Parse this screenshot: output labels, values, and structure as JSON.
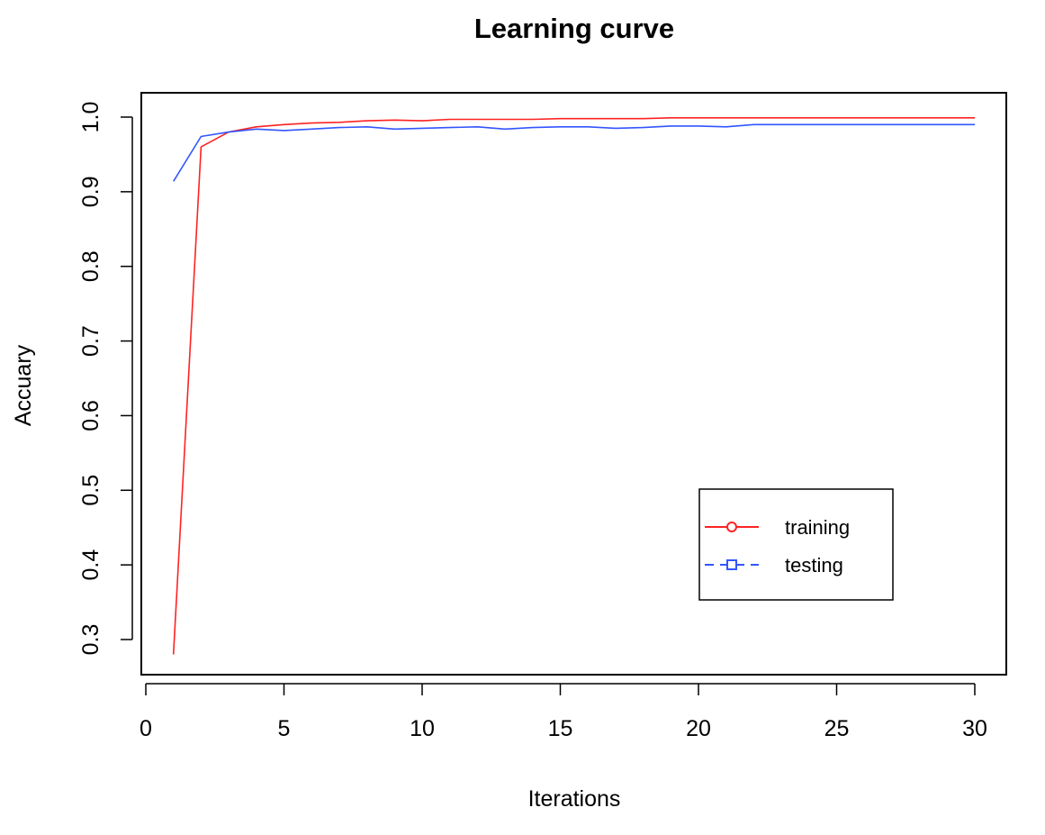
{
  "chart_data": {
    "type": "line",
    "title": "Learning curve",
    "xlabel": "Iterations",
    "ylabel": "Accuary",
    "xlim": [
      0,
      30
    ],
    "ylim": [
      0.25,
      1.02
    ],
    "xticks": [
      0,
      5,
      10,
      15,
      20,
      25,
      30
    ],
    "xtick_labels": [
      "0",
      "5",
      "10",
      "15",
      "20",
      "25",
      "30"
    ],
    "yticks": [
      0.3,
      0.4,
      0.5,
      0.6,
      0.7,
      0.8,
      0.9,
      1.0
    ],
    "ytick_labels": [
      "0.3",
      "0.4",
      "0.5",
      "0.6",
      "0.7",
      "0.8",
      "0.9",
      "1.0"
    ],
    "grid": false,
    "legend_position": "bottom-right",
    "x": [
      1,
      2,
      3,
      4,
      5,
      6,
      7,
      8,
      9,
      10,
      11,
      12,
      13,
      14,
      15,
      16,
      17,
      18,
      19,
      20,
      21,
      22,
      23,
      24,
      25,
      26,
      27,
      28,
      29,
      30
    ],
    "series": [
      {
        "name": "training",
        "color": "#ff2222",
        "line_style": "solid",
        "marker": "circle",
        "values": [
          0.28,
          0.96,
          0.98,
          0.987,
          0.99,
          0.992,
          0.993,
          0.995,
          0.996,
          0.995,
          0.997,
          0.997,
          0.997,
          0.997,
          0.998,
          0.998,
          0.998,
          0.998,
          0.999,
          0.999,
          0.999,
          0.999,
          0.999,
          0.999,
          0.999,
          0.999,
          0.999,
          0.999,
          0.999,
          0.999
        ]
      },
      {
        "name": "testing",
        "color": "#3355ff",
        "line_style": "dashed",
        "marker": "square",
        "values": [
          0.914,
          0.974,
          0.98,
          0.984,
          0.982,
          0.984,
          0.986,
          0.987,
          0.984,
          0.985,
          0.986,
          0.987,
          0.984,
          0.986,
          0.987,
          0.987,
          0.985,
          0.986,
          0.988,
          0.988,
          0.987,
          0.99,
          0.99,
          0.99,
          0.99,
          0.99,
          0.99,
          0.99,
          0.99,
          0.99
        ]
      }
    ]
  }
}
